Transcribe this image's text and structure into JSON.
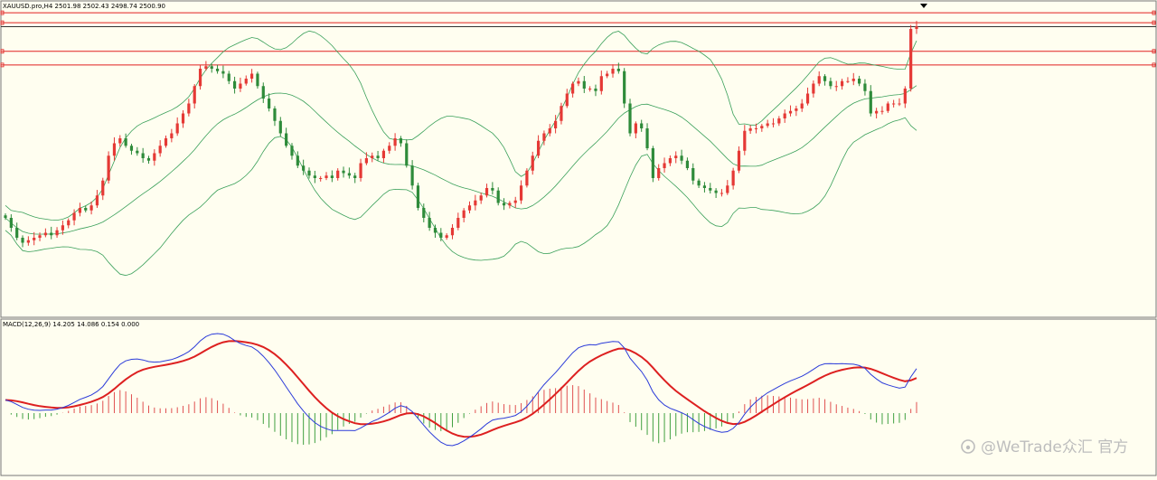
{
  "chart_data": [
    {
      "type": "candlestick",
      "title": "XAUUSD.pro,H4  2501.98 2502.43 2498.74 2500.90",
      "symbol": "XAUUSD.pro",
      "timeframe": "H4",
      "last_bar": {
        "open": 2501.98,
        "high": 2502.43,
        "low": 2498.74,
        "close": 2500.9
      },
      "y_range": [
        2388,
        2508
      ],
      "bar_count": 160,
      "up_color": "#e53935",
      "down_color": "#2e8b3a",
      "grid": false,
      "legend": "none",
      "horizontal_levels": [
        {
          "price": 2506.5,
          "color": "#e02020"
        },
        {
          "price": 2502.5,
          "color": "#e02020"
        },
        {
          "price": 2500.9,
          "color": "#333333"
        },
        {
          "price": 2491.0,
          "color": "#e02020"
        },
        {
          "price": 2485.5,
          "color": "#e02020"
        }
      ],
      "bollinger_color": "#3aa05a",
      "closes": [
        2424,
        2420,
        2416,
        2414,
        2415,
        2416,
        2417,
        2418,
        2417,
        2419,
        2421,
        2423,
        2426,
        2428,
        2427,
        2429,
        2433,
        2439,
        2449,
        2454,
        2456,
        2453,
        2451,
        2450,
        2448,
        2447,
        2450,
        2453,
        2456,
        2458,
        2462,
        2466,
        2470,
        2477,
        2484,
        2485,
        2484,
        2483,
        2482,
        2479,
        2476,
        2478,
        2480,
        2482,
        2477,
        2472,
        2468,
        2463,
        2458,
        2453,
        2449,
        2445,
        2443,
        2441,
        2440,
        2440,
        2441,
        2440,
        2443,
        2442,
        2441,
        2440,
        2446,
        2448,
        2449,
        2448,
        2451,
        2453,
        2456,
        2454,
        2445,
        2437,
        2428,
        2424,
        2420,
        2418,
        2416,
        2417,
        2420,
        2424,
        2427,
        2429,
        2431,
        2433,
        2436,
        2435,
        2430,
        2429,
        2430,
        2431,
        2437,
        2443,
        2449,
        2455,
        2458,
        2460,
        2463,
        2469,
        2474,
        2478,
        2479,
        2476,
        2476,
        2475,
        2481,
        2482,
        2484,
        2483,
        2470,
        2458,
        2462,
        2460,
        2452,
        2440,
        2444,
        2446,
        2448,
        2449,
        2447,
        2444,
        2439,
        2437,
        2436,
        2435,
        2434,
        2434,
        2437,
        2443,
        2451,
        2459,
        2460,
        2460,
        2461,
        2462,
        2462,
        2464,
        2466,
        2467,
        2468,
        2470,
        2474,
        2478,
        2481,
        2479,
        2477,
        2477,
        2479,
        2479,
        2480,
        2478,
        2475,
        2466,
        2467,
        2467,
        2470,
        2470,
        2470,
        2476,
        2500,
        2501
      ],
      "subplot": {
        "type": "macd",
        "title": "MACD(12,26,9) 14.205 14.086 0.154 0.000",
        "params": [
          12,
          26,
          9
        ],
        "values": {
          "macd": 14.205,
          "signal": 14.086,
          "histogram": 0.154,
          "extra": 0.0
        },
        "colors": {
          "macd": "#2b3bd9",
          "signal": "#dd2020",
          "hist_up": "#e05050",
          "hist_down": "#40a040"
        }
      }
    }
  ],
  "watermark": {
    "icon": "weibo-icon",
    "text": "@WeTrade众汇 官方"
  },
  "top_marker_icon": "triangle-down-icon"
}
